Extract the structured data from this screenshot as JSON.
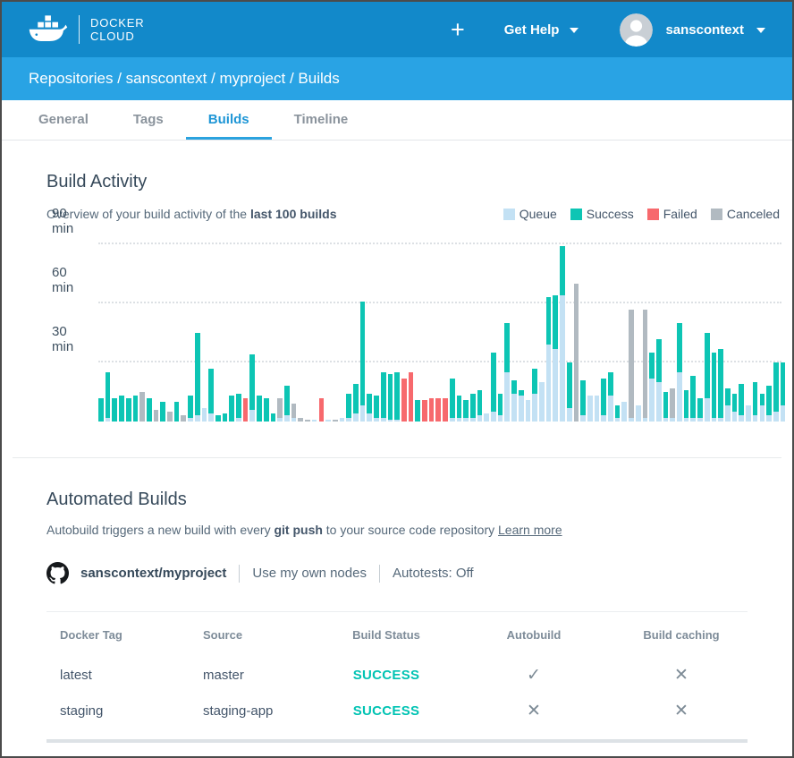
{
  "header": {
    "logo_line1": "DOCKER",
    "logo_line2": "CLOUD",
    "plus_label": "+",
    "get_help_label": "Get Help",
    "username": "sanscontext"
  },
  "breadcrumb": {
    "path": "Repositories / sanscontext / myproject / Builds"
  },
  "tabs": [
    {
      "label": "General",
      "active": false
    },
    {
      "label": "Tags",
      "active": false
    },
    {
      "label": "Builds",
      "active": true
    },
    {
      "label": "Timeline",
      "active": false
    }
  ],
  "build_activity": {
    "title": "Build Activity",
    "subtitle_prefix": "Overview of your build activity of the ",
    "subtitle_bold": "last 100 builds"
  },
  "legend": [
    {
      "label": "Queue",
      "color": "#C3E1F4"
    },
    {
      "label": "Success",
      "color": "#0DC5B4"
    },
    {
      "label": "Failed",
      "color": "#F7696D"
    },
    {
      "label": "Canceled",
      "color": "#B1BAC1"
    }
  ],
  "chart_data": {
    "type": "bar",
    "subtype": "stacked",
    "title": "Build Activity",
    "description": "Duration in minutes of each of the last 100 builds, stacked segments per build: [queue, success, failed, canceled]",
    "unit": "minutes",
    "ylim": [
      0,
      95
    ],
    "grid": "dotted horizontal",
    "legend_position": "top-right",
    "yticks": [
      {
        "label": "30 min",
        "value": 30
      },
      {
        "label": "60 min",
        "value": 60
      },
      {
        "label": "90 min",
        "value": 90
      }
    ],
    "series_order": [
      "queue",
      "success",
      "failed",
      "canceled"
    ],
    "colors": {
      "queue": "#C3E1F4",
      "success": "#0DC5B4",
      "failed": "#F7696D",
      "canceled": "#B1BAC1"
    },
    "bars": [
      [
        0,
        12,
        0,
        0
      ],
      [
        2,
        23,
        0,
        0
      ],
      [
        0,
        12,
        0,
        0
      ],
      [
        0,
        13,
        0,
        0
      ],
      [
        0,
        12,
        0,
        0
      ],
      [
        0,
        13,
        0,
        0
      ],
      [
        0,
        0,
        0,
        15
      ],
      [
        0,
        12,
        0,
        0
      ],
      [
        0,
        0,
        0,
        6
      ],
      [
        0,
        10,
        0,
        0
      ],
      [
        0,
        0,
        0,
        5
      ],
      [
        0,
        10,
        0,
        0
      ],
      [
        0,
        0,
        0,
        3
      ],
      [
        2,
        11,
        0,
        0
      ],
      [
        3,
        42,
        0,
        0
      ],
      [
        7,
        0,
        0,
        0
      ],
      [
        4,
        23,
        0,
        0
      ],
      [
        0,
        3,
        0,
        0
      ],
      [
        0,
        4,
        0,
        0
      ],
      [
        0,
        13,
        0,
        0
      ],
      [
        2,
        12,
        0,
        0
      ],
      [
        0,
        0,
        12,
        0
      ],
      [
        6,
        28,
        0,
        0
      ],
      [
        0,
        13,
        0,
        0
      ],
      [
        0,
        12,
        0,
        0
      ],
      [
        0,
        4,
        0,
        0
      ],
      [
        2,
        0,
        0,
        10
      ],
      [
        3,
        15,
        0,
        0
      ],
      [
        2,
        0,
        0,
        7
      ],
      [
        0,
        0,
        0,
        2
      ],
      [
        0,
        0,
        0,
        1
      ],
      [
        1,
        0,
        0,
        0
      ],
      [
        0,
        0,
        12,
        0
      ],
      [
        1,
        0,
        0,
        0
      ],
      [
        0,
        0,
        0,
        1
      ],
      [
        2,
        0,
        0,
        0
      ],
      [
        2,
        12,
        0,
        0
      ],
      [
        4,
        15,
        0,
        0
      ],
      [
        8,
        53,
        0,
        0
      ],
      [
        4,
        10,
        0,
        0
      ],
      [
        2,
        11,
        0,
        0
      ],
      [
        2,
        23,
        0,
        0
      ],
      [
        1,
        23,
        0,
        0
      ],
      [
        1,
        24,
        0,
        0
      ],
      [
        0,
        0,
        22,
        0
      ],
      [
        0,
        0,
        25,
        0
      ],
      [
        0,
        11,
        0,
        0
      ],
      [
        0,
        0,
        11,
        0
      ],
      [
        0,
        0,
        12,
        0
      ],
      [
        0,
        0,
        12,
        0
      ],
      [
        0,
        0,
        12,
        0
      ],
      [
        2,
        20,
        0,
        0
      ],
      [
        2,
        11,
        0,
        0
      ],
      [
        2,
        9,
        0,
        0
      ],
      [
        2,
        12,
        0,
        0
      ],
      [
        3,
        13,
        0,
        0
      ],
      [
        4,
        0,
        0,
        0
      ],
      [
        5,
        30,
        0,
        0
      ],
      [
        3,
        11,
        0,
        0
      ],
      [
        25,
        25,
        0,
        0
      ],
      [
        14,
        7,
        0,
        0
      ],
      [
        13,
        3,
        0,
        0
      ],
      [
        11,
        0,
        0,
        0
      ],
      [
        14,
        13,
        0,
        0
      ],
      [
        20,
        0,
        0,
        0
      ],
      [
        39,
        24,
        0,
        0
      ],
      [
        37,
        27,
        0,
        0
      ],
      [
        64,
        25,
        0,
        0
      ],
      [
        7,
        23,
        0,
        0
      ],
      [
        0,
        0,
        0,
        70
      ],
      [
        3,
        18,
        0,
        0
      ],
      [
        13,
        0,
        0,
        0
      ],
      [
        13,
        0,
        0,
        0
      ],
      [
        3,
        19,
        0,
        0
      ],
      [
        13,
        12,
        0,
        0
      ],
      [
        2,
        6,
        0,
        0
      ],
      [
        10,
        0,
        0,
        0
      ],
      [
        2,
        0,
        0,
        55
      ],
      [
        8,
        0,
        0,
        0
      ],
      [
        2,
        0,
        0,
        55
      ],
      [
        22,
        13,
        0,
        0
      ],
      [
        20,
        22,
        0,
        0
      ],
      [
        2,
        13,
        0,
        0
      ],
      [
        2,
        0,
        0,
        15
      ],
      [
        25,
        25,
        0,
        0
      ],
      [
        2,
        14,
        0,
        0
      ],
      [
        2,
        21,
        0,
        0
      ],
      [
        2,
        10,
        0,
        0
      ],
      [
        12,
        33,
        0,
        0
      ],
      [
        2,
        33,
        0,
        0
      ],
      [
        2,
        35,
        0,
        0
      ],
      [
        8,
        9,
        0,
        0
      ],
      [
        5,
        9,
        0,
        0
      ],
      [
        3,
        16,
        0,
        0
      ],
      [
        8,
        0,
        0,
        0
      ],
      [
        3,
        17,
        0,
        0
      ],
      [
        8,
        6,
        0,
        0
      ],
      [
        3,
        15,
        0,
        0
      ],
      [
        5,
        25,
        0,
        0
      ],
      [
        8,
        22,
        0,
        0
      ]
    ]
  },
  "automated_builds": {
    "title": "Automated Builds",
    "subtitle_prefix": "Autobuild triggers a new build with every ",
    "subtitle_bold": "git push",
    "subtitle_suffix": " to your source code repository ",
    "learn_more_label": "Learn more",
    "repo_name": "sanscontext/myproject",
    "nodes_label": "Use my own nodes",
    "autotests_label": "Autotests: Off"
  },
  "table": {
    "headers": [
      "Docker Tag",
      "Source",
      "Build Status",
      "Autobuild",
      "Build caching"
    ],
    "rows": [
      {
        "docker_tag": "latest",
        "source": "master",
        "build_status": "SUCCESS",
        "autobuild": "check",
        "build_caching": "cross"
      },
      {
        "docker_tag": "staging",
        "source": "staging-app",
        "build_status": "SUCCESS",
        "autobuild": "cross",
        "build_caching": "cross"
      }
    ]
  }
}
